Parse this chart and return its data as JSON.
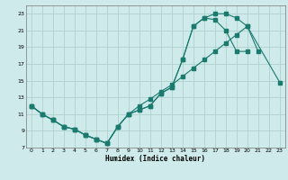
{
  "xlabel": "Humidex (Indice chaleur)",
  "background_color": "#ceeaea",
  "grid_color": "#b0d0d0",
  "line_color": "#1a7a6e",
  "xlim": [
    -0.5,
    23.5
  ],
  "ylim": [
    7,
    24
  ],
  "xticks": [
    0,
    1,
    2,
    3,
    4,
    5,
    6,
    7,
    8,
    9,
    10,
    11,
    12,
    13,
    14,
    15,
    16,
    17,
    18,
    19,
    20,
    21,
    22,
    23
  ],
  "yticks": [
    7,
    9,
    11,
    13,
    15,
    17,
    19,
    21,
    23
  ],
  "line1_x": [
    0,
    1,
    2,
    3,
    4,
    5,
    6,
    7,
    8,
    9,
    10,
    11,
    12,
    13,
    14,
    15,
    16,
    17,
    18,
    19,
    20,
    21
  ],
  "line1_y": [
    12,
    11,
    10.3,
    9.5,
    9.2,
    8.5,
    8.0,
    7.5,
    9.5,
    11.0,
    11.5,
    12.0,
    13.5,
    14.2,
    17.5,
    21.5,
    22.5,
    23.0,
    23.0,
    22.5,
    21.5,
    18.5
  ],
  "line2_x": [
    0,
    1,
    2,
    3,
    4,
    5,
    6,
    7,
    8,
    9,
    10,
    11,
    12,
    13,
    14,
    15,
    16,
    17,
    18,
    19,
    20
  ],
  "line2_y": [
    12,
    11,
    10.3,
    9.5,
    9.2,
    8.5,
    8.0,
    7.5,
    9.5,
    11.0,
    11.5,
    12.0,
    13.5,
    14.2,
    17.5,
    21.5,
    22.5,
    22.3,
    21.0,
    18.5,
    18.5
  ],
  "line3_x": [
    0,
    1,
    2,
    3,
    4,
    5,
    6,
    7,
    8,
    9,
    10,
    11,
    12,
    13,
    14,
    15,
    16,
    17,
    18,
    19,
    20,
    23
  ],
  "line3_y": [
    12,
    11,
    10.3,
    9.5,
    9.2,
    8.5,
    8.0,
    7.5,
    9.5,
    11.0,
    12.0,
    12.8,
    13.7,
    14.5,
    15.5,
    16.5,
    17.5,
    18.5,
    19.5,
    20.5,
    21.5,
    14.8
  ]
}
